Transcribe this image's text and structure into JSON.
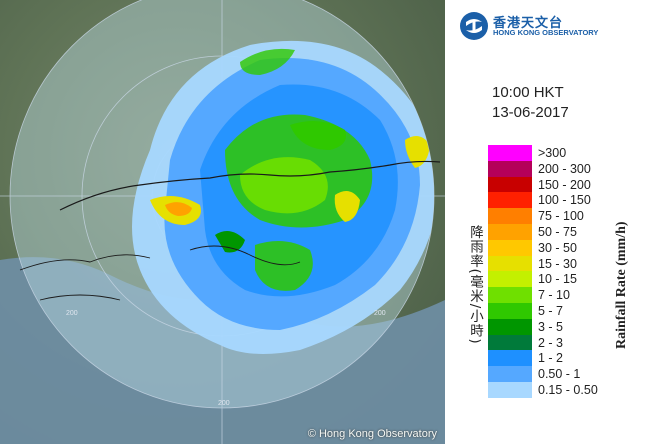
{
  "header": {
    "org_name_zh": "香港天文台",
    "org_name_en": "HONG KONG OBSERVATORY",
    "time": "10:00 HKT",
    "date": "13-06-2017"
  },
  "map": {
    "copyright": "© Hong Kong Observatory",
    "range_ring_labels": [
      "200",
      "200",
      "200"
    ]
  },
  "legend": {
    "title_en": "Rainfall Rate (mm/h)",
    "title_zh": "降雨率(毫米/小時)",
    "items": [
      {
        "label": ">300",
        "color": "#ff00ff"
      },
      {
        "label": "200 - 300",
        "color": "#b5005a"
      },
      {
        "label": "150 - 200",
        "color": "#c80000"
      },
      {
        "label": "100 - 150",
        "color": "#ff2000"
      },
      {
        "label": "75 - 100",
        "color": "#ff7f00"
      },
      {
        "label": "50 - 75",
        "color": "#ffa200"
      },
      {
        "label": "30 - 50",
        "color": "#ffc800"
      },
      {
        "label": "15 - 30",
        "color": "#e6e000"
      },
      {
        "label": "10 - 15",
        "color": "#c3f000"
      },
      {
        "label": "7 - 10",
        "color": "#6fe000"
      },
      {
        "label": "5 - 7",
        "color": "#2fc800"
      },
      {
        "label": "3 - 5",
        "color": "#009600"
      },
      {
        "label": "2 - 3",
        "color": "#007a3a"
      },
      {
        "label": "1 - 2",
        "color": "#1e90ff"
      },
      {
        "label": "0.50 - 1",
        "color": "#55a8ff"
      },
      {
        "label": "0.15 - 0.50",
        "color": "#a8d8ff"
      }
    ]
  }
}
